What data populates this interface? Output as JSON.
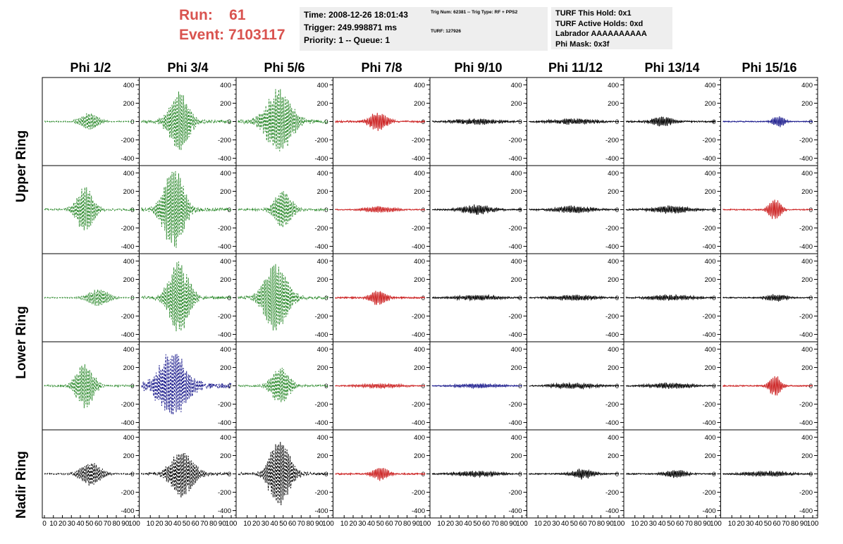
{
  "header": {
    "run_line": "Run:    61",
    "event_line": "Event: 7103117"
  },
  "time_box": {
    "line1": "Time: 2008-12-26 18:01:43",
    "line2": "Trigger: 249.998871 ms",
    "line3": "Priority: 1 -- Queue: 1"
  },
  "trig_box": {
    "line1": "Trig Num: 62381 -- Trig Type: RF + PPS2",
    "line2": "TURF: 127926"
  },
  "turf_box": {
    "line1": "TURF This Hold: 0x1",
    "line2": "TURF Active Holds: 0xd",
    "line3": "Labrador AAAAAAAAAA",
    "line4": "Phi Mask: 0x3f"
  },
  "columns": [
    "Phi 1/2",
    "Phi 3/4",
    "Phi 5/6",
    "Phi 7/8",
    "Phi 9/10",
    "Phi 11/12",
    "Phi 13/14",
    "Phi 15/16"
  ],
  "rows": [
    "Upper Ring",
    "",
    "Lower Ring",
    "",
    "Nadir Ring"
  ],
  "colors": {
    "green": "#2e8b2e",
    "red": "#cc2222",
    "blue": "#1a1a8c",
    "black": "#000000",
    "highlight_text": "#d9534f",
    "box_bg": "#eeeeee"
  },
  "chart_data": {
    "type": "line",
    "description_grid": "5 rows x 8 columns of waveform panels",
    "ylim": [
      -480,
      480
    ],
    "y_ticks": [
      -400,
      -200,
      0,
      200,
      400
    ],
    "y_tick_labels": [
      "-400",
      "-200",
      "0",
      "200",
      "400"
    ],
    "xlim": [
      0,
      100
    ],
    "x_tick_labels": [
      "0",
      "10",
      "20",
      "30",
      "40",
      "50",
      "60",
      "70",
      "80",
      "90",
      "100"
    ],
    "panels": [
      [
        {
          "color": "green",
          "dashed": true,
          "amp": 90,
          "center": 50,
          "width": 12,
          "noise": 10
        },
        {
          "color": "green",
          "dashed": true,
          "amp": 300,
          "center": 42,
          "width": 14,
          "noise": 30
        },
        {
          "color": "green",
          "dashed": true,
          "amp": 330,
          "center": 45,
          "width": 18,
          "noise": 40
        },
        {
          "color": "red",
          "dashed": false,
          "amp": 95,
          "center": 48,
          "width": 12,
          "noise": 18
        },
        {
          "color": "black",
          "dashed": false,
          "amp": 25,
          "center": 50,
          "width": 30,
          "noise": 12
        },
        {
          "color": "black",
          "dashed": false,
          "amp": 25,
          "center": 50,
          "width": 30,
          "noise": 12
        },
        {
          "color": "black",
          "dashed": false,
          "amp": 45,
          "center": 40,
          "width": 14,
          "noise": 15
        },
        {
          "color": "blue",
          "dashed": false,
          "amp": 55,
          "center": 62,
          "width": 8,
          "noise": 10
        }
      ],
      [
        {
          "color": "green",
          "dashed": true,
          "amp": 230,
          "center": 45,
          "width": 12,
          "noise": 20
        },
        {
          "color": "green",
          "dashed": true,
          "amp": 430,
          "center": 36,
          "width": 14,
          "noise": 35
        },
        {
          "color": "green",
          "dashed": true,
          "amp": 200,
          "center": 50,
          "width": 12,
          "noise": 20
        },
        {
          "color": "red",
          "dashed": false,
          "amp": 30,
          "center": 50,
          "width": 20,
          "noise": 10
        },
        {
          "color": "black",
          "dashed": false,
          "amp": 45,
          "center": 50,
          "width": 20,
          "noise": 14
        },
        {
          "color": "black",
          "dashed": false,
          "amp": 35,
          "center": 50,
          "width": 25,
          "noise": 12
        },
        {
          "color": "black",
          "dashed": false,
          "amp": 35,
          "center": 50,
          "width": 25,
          "noise": 12
        },
        {
          "color": "red",
          "dashed": false,
          "amp": 110,
          "center": 58,
          "width": 8,
          "noise": 12
        }
      ],
      [
        {
          "color": "green",
          "dashed": true,
          "amp": 90,
          "center": 60,
          "width": 14,
          "noise": 10
        },
        {
          "color": "green",
          "dashed": true,
          "amp": 380,
          "center": 42,
          "width": 14,
          "noise": 30
        },
        {
          "color": "green",
          "dashed": true,
          "amp": 360,
          "center": 42,
          "width": 16,
          "noise": 30
        },
        {
          "color": "red",
          "dashed": false,
          "amp": 80,
          "center": 48,
          "width": 10,
          "noise": 15
        },
        {
          "color": "black",
          "dashed": false,
          "amp": 25,
          "center": 50,
          "width": 30,
          "noise": 10
        },
        {
          "color": "black",
          "dashed": false,
          "amp": 25,
          "center": 50,
          "width": 30,
          "noise": 10
        },
        {
          "color": "black",
          "dashed": false,
          "amp": 25,
          "center": 50,
          "width": 30,
          "noise": 10
        },
        {
          "color": "black",
          "dashed": false,
          "amp": 35,
          "center": 60,
          "width": 14,
          "noise": 10
        }
      ],
      [
        {
          "color": "green",
          "dashed": true,
          "amp": 230,
          "center": 45,
          "width": 12,
          "noise": 20
        },
        {
          "color": "blue",
          "dashed": true,
          "amp": 340,
          "center": 35,
          "width": 20,
          "noise": 60
        },
        {
          "color": "green",
          "dashed": true,
          "amp": 200,
          "center": 47,
          "width": 12,
          "noise": 20
        },
        {
          "color": "red",
          "dashed": false,
          "amp": 20,
          "center": 50,
          "width": 30,
          "noise": 8
        },
        {
          "color": "blue",
          "dashed": false,
          "amp": 20,
          "center": 50,
          "width": 30,
          "noise": 8
        },
        {
          "color": "black",
          "dashed": false,
          "amp": 25,
          "center": 50,
          "width": 30,
          "noise": 10
        },
        {
          "color": "black",
          "dashed": false,
          "amp": 25,
          "center": 50,
          "width": 30,
          "noise": 10
        },
        {
          "color": "red",
          "dashed": false,
          "amp": 110,
          "center": 58,
          "width": 8,
          "noise": 12
        }
      ],
      [
        {
          "color": "black",
          "dashed": true,
          "amp": 120,
          "center": 52,
          "width": 14,
          "noise": 12
        },
        {
          "color": "black",
          "dashed": true,
          "amp": 240,
          "center": 45,
          "width": 16,
          "noise": 25
        },
        {
          "color": "black",
          "dashed": true,
          "amp": 360,
          "center": 46,
          "width": 14,
          "noise": 30
        },
        {
          "color": "red",
          "dashed": false,
          "amp": 70,
          "center": 50,
          "width": 10,
          "noise": 15
        },
        {
          "color": "black",
          "dashed": false,
          "amp": 25,
          "center": 50,
          "width": 30,
          "noise": 10
        },
        {
          "color": "black",
          "dashed": false,
          "amp": 50,
          "center": 60,
          "width": 14,
          "noise": 12
        },
        {
          "color": "black",
          "dashed": false,
          "amp": 40,
          "center": 55,
          "width": 14,
          "noise": 12
        },
        {
          "color": "black",
          "dashed": false,
          "amp": 25,
          "center": 50,
          "width": 30,
          "noise": 10
        }
      ]
    ]
  }
}
